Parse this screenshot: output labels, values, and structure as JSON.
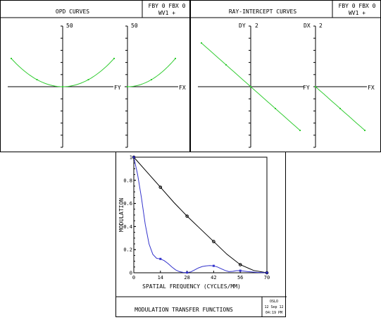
{
  "opd": {
    "title": "OPD CURVES",
    "info_line1": "FBY 0 FBX 0",
    "info_line2": "WV1 +",
    "left_scale": "50",
    "right_scale": "50",
    "left_axis": "FY",
    "right_axis": "FX"
  },
  "ray": {
    "title": "RAY-INTERCEPT CURVES",
    "info_line1": "FBY 0 FBX 0",
    "info_line2": "WV1 +",
    "left_ylabel": "DY",
    "left_scale": "2",
    "right_ylabel": "DX",
    "right_scale": "2",
    "left_axis": "FY",
    "right_axis": "FX"
  },
  "mtf": {
    "title": "MODULATION TRANSFER FUNCTIONS",
    "logo": "OSLO",
    "date": "12 Sep 12",
    "time": "04:19 PM"
  },
  "chart_data": [
    {
      "type": "line",
      "panel": "opd-fy",
      "x": [
        -1.0,
        -0.5,
        0.0,
        0.5,
        1.0
      ],
      "series": [
        {
          "values": [
            1.0,
            0.25,
            0.0,
            0.25,
            1.0
          ],
          "color": "#33cc33"
        }
      ]
    },
    {
      "type": "line",
      "panel": "opd-fx",
      "x": [
        0.0,
        0.5,
        1.0
      ],
      "series": [
        {
          "values": [
            0.0,
            0.25,
            1.0
          ],
          "color": "#33cc33"
        }
      ]
    },
    {
      "type": "line",
      "panel": "ray-fy",
      "x": [
        -1.0,
        -0.5,
        0.0,
        0.5,
        1.0
      ],
      "series": [
        {
          "values": [
            1.0,
            0.5,
            0.0,
            -0.5,
            -1.0
          ],
          "color": "#33cc33"
        }
      ]
    },
    {
      "type": "line",
      "panel": "ray-fx",
      "x": [
        0.0,
        0.5,
        1.0
      ],
      "series": [
        {
          "values": [
            0.0,
            -0.5,
            -1.0
          ],
          "color": "#33cc33"
        }
      ]
    },
    {
      "type": "line",
      "panel": "mtf",
      "title": "",
      "xlabel": "SPATIAL FREQUENCY (CYCLES/MM)",
      "ylabel": "MODULATION",
      "xlim": [
        0,
        70
      ],
      "ylim": [
        0,
        1
      ],
      "xticks": [
        "0",
        "14",
        "28",
        "42",
        "56",
        "70"
      ],
      "yticks": [
        "0",
        "0.2",
        "0.4",
        "0.6",
        "0.8",
        "1"
      ],
      "series": [
        {
          "color": "#000000",
          "curve_x": [
            0,
            7,
            14,
            21,
            28,
            35,
            42,
            49,
            56,
            63,
            70
          ],
          "curve_y": [
            1.0,
            0.87,
            0.74,
            0.61,
            0.49,
            0.38,
            0.27,
            0.16,
            0.07,
            0.02,
            0.0
          ],
          "marker_x": [
            0,
            14,
            28,
            42,
            56,
            70
          ],
          "marker_y": [
            1.0,
            0.74,
            0.49,
            0.27,
            0.07,
            0.0
          ]
        },
        {
          "color": "#3333cc",
          "curve_x": [
            0,
            2,
            4,
            6,
            8,
            10,
            12,
            14,
            16,
            18,
            20,
            22,
            24,
            26,
            28,
            30,
            32,
            34,
            36,
            38,
            40,
            42,
            44,
            46,
            48,
            50,
            52,
            54,
            56,
            60,
            65,
            70
          ],
          "curve_y": [
            1.0,
            0.85,
            0.65,
            0.42,
            0.25,
            0.16,
            0.125,
            0.12,
            0.105,
            0.08,
            0.05,
            0.025,
            0.01,
            0.003,
            0.002,
            0.008,
            0.025,
            0.042,
            0.054,
            0.06,
            0.062,
            0.06,
            0.05,
            0.035,
            0.02,
            0.01,
            0.012,
            0.018,
            0.018,
            0.01,
            0.003,
            0.0
          ],
          "marker_x": [
            0,
            14,
            28,
            42,
            56,
            70
          ],
          "marker_y": [
            1.0,
            0.12,
            0.002,
            0.06,
            0.018,
            0.0
          ]
        }
      ]
    }
  ]
}
